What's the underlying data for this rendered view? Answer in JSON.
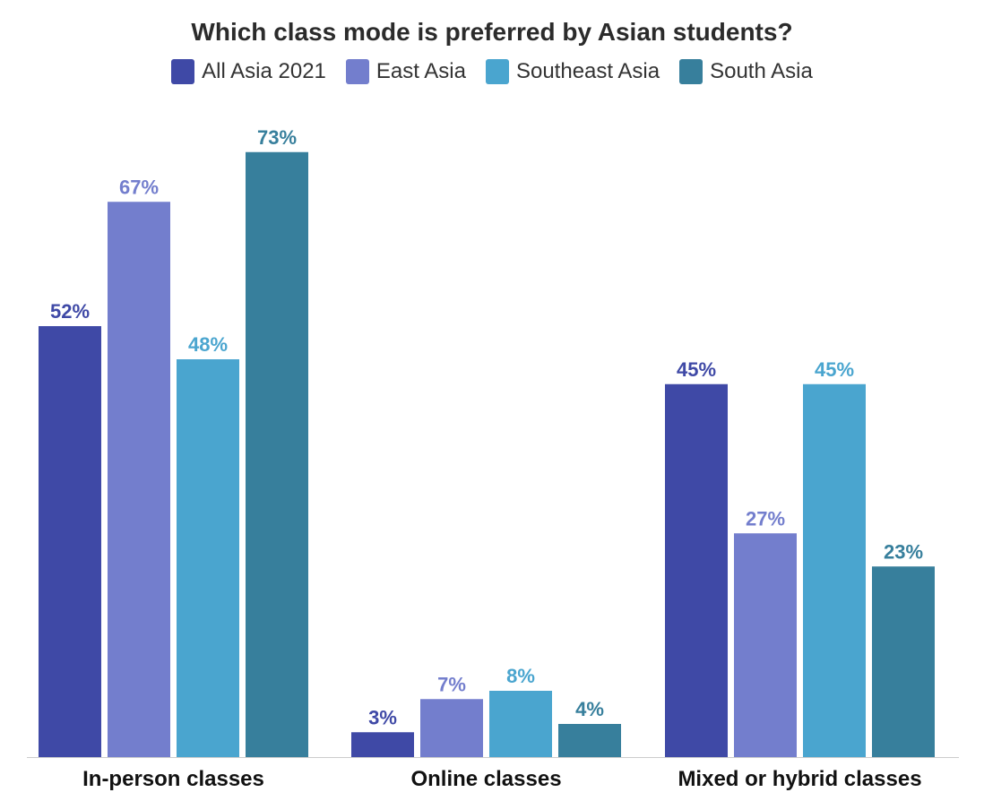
{
  "chart_data": {
    "type": "bar",
    "title": "Which class mode is preferred by Asian students?",
    "xlabel": "",
    "ylabel": "",
    "ylim": [
      0,
      80
    ],
    "grid": false,
    "legend_position": "top-center",
    "categories": [
      "In-person classes",
      "Online classes",
      "Mixed or hybrid classes"
    ],
    "series": [
      {
        "name": "All Asia 2021",
        "color": "#3f49a6",
        "values": [
          52,
          3,
          45
        ],
        "labels": [
          "52%",
          "3%",
          "45%"
        ]
      },
      {
        "name": "East Asia",
        "color": "#737ecd",
        "values": [
          67,
          7,
          27
        ],
        "labels": [
          "67%",
          "7%",
          "27%"
        ]
      },
      {
        "name": "Southeast Asia",
        "color": "#4aa5cf",
        "values": [
          48,
          8,
          45
        ],
        "labels": [
          "48%",
          "8%",
          "45%"
        ]
      },
      {
        "name": "South Asia",
        "color": "#377f9c",
        "values": [
          73,
          4,
          23
        ],
        "labels": [
          "73%",
          "4%",
          "23%"
        ]
      }
    ]
  }
}
